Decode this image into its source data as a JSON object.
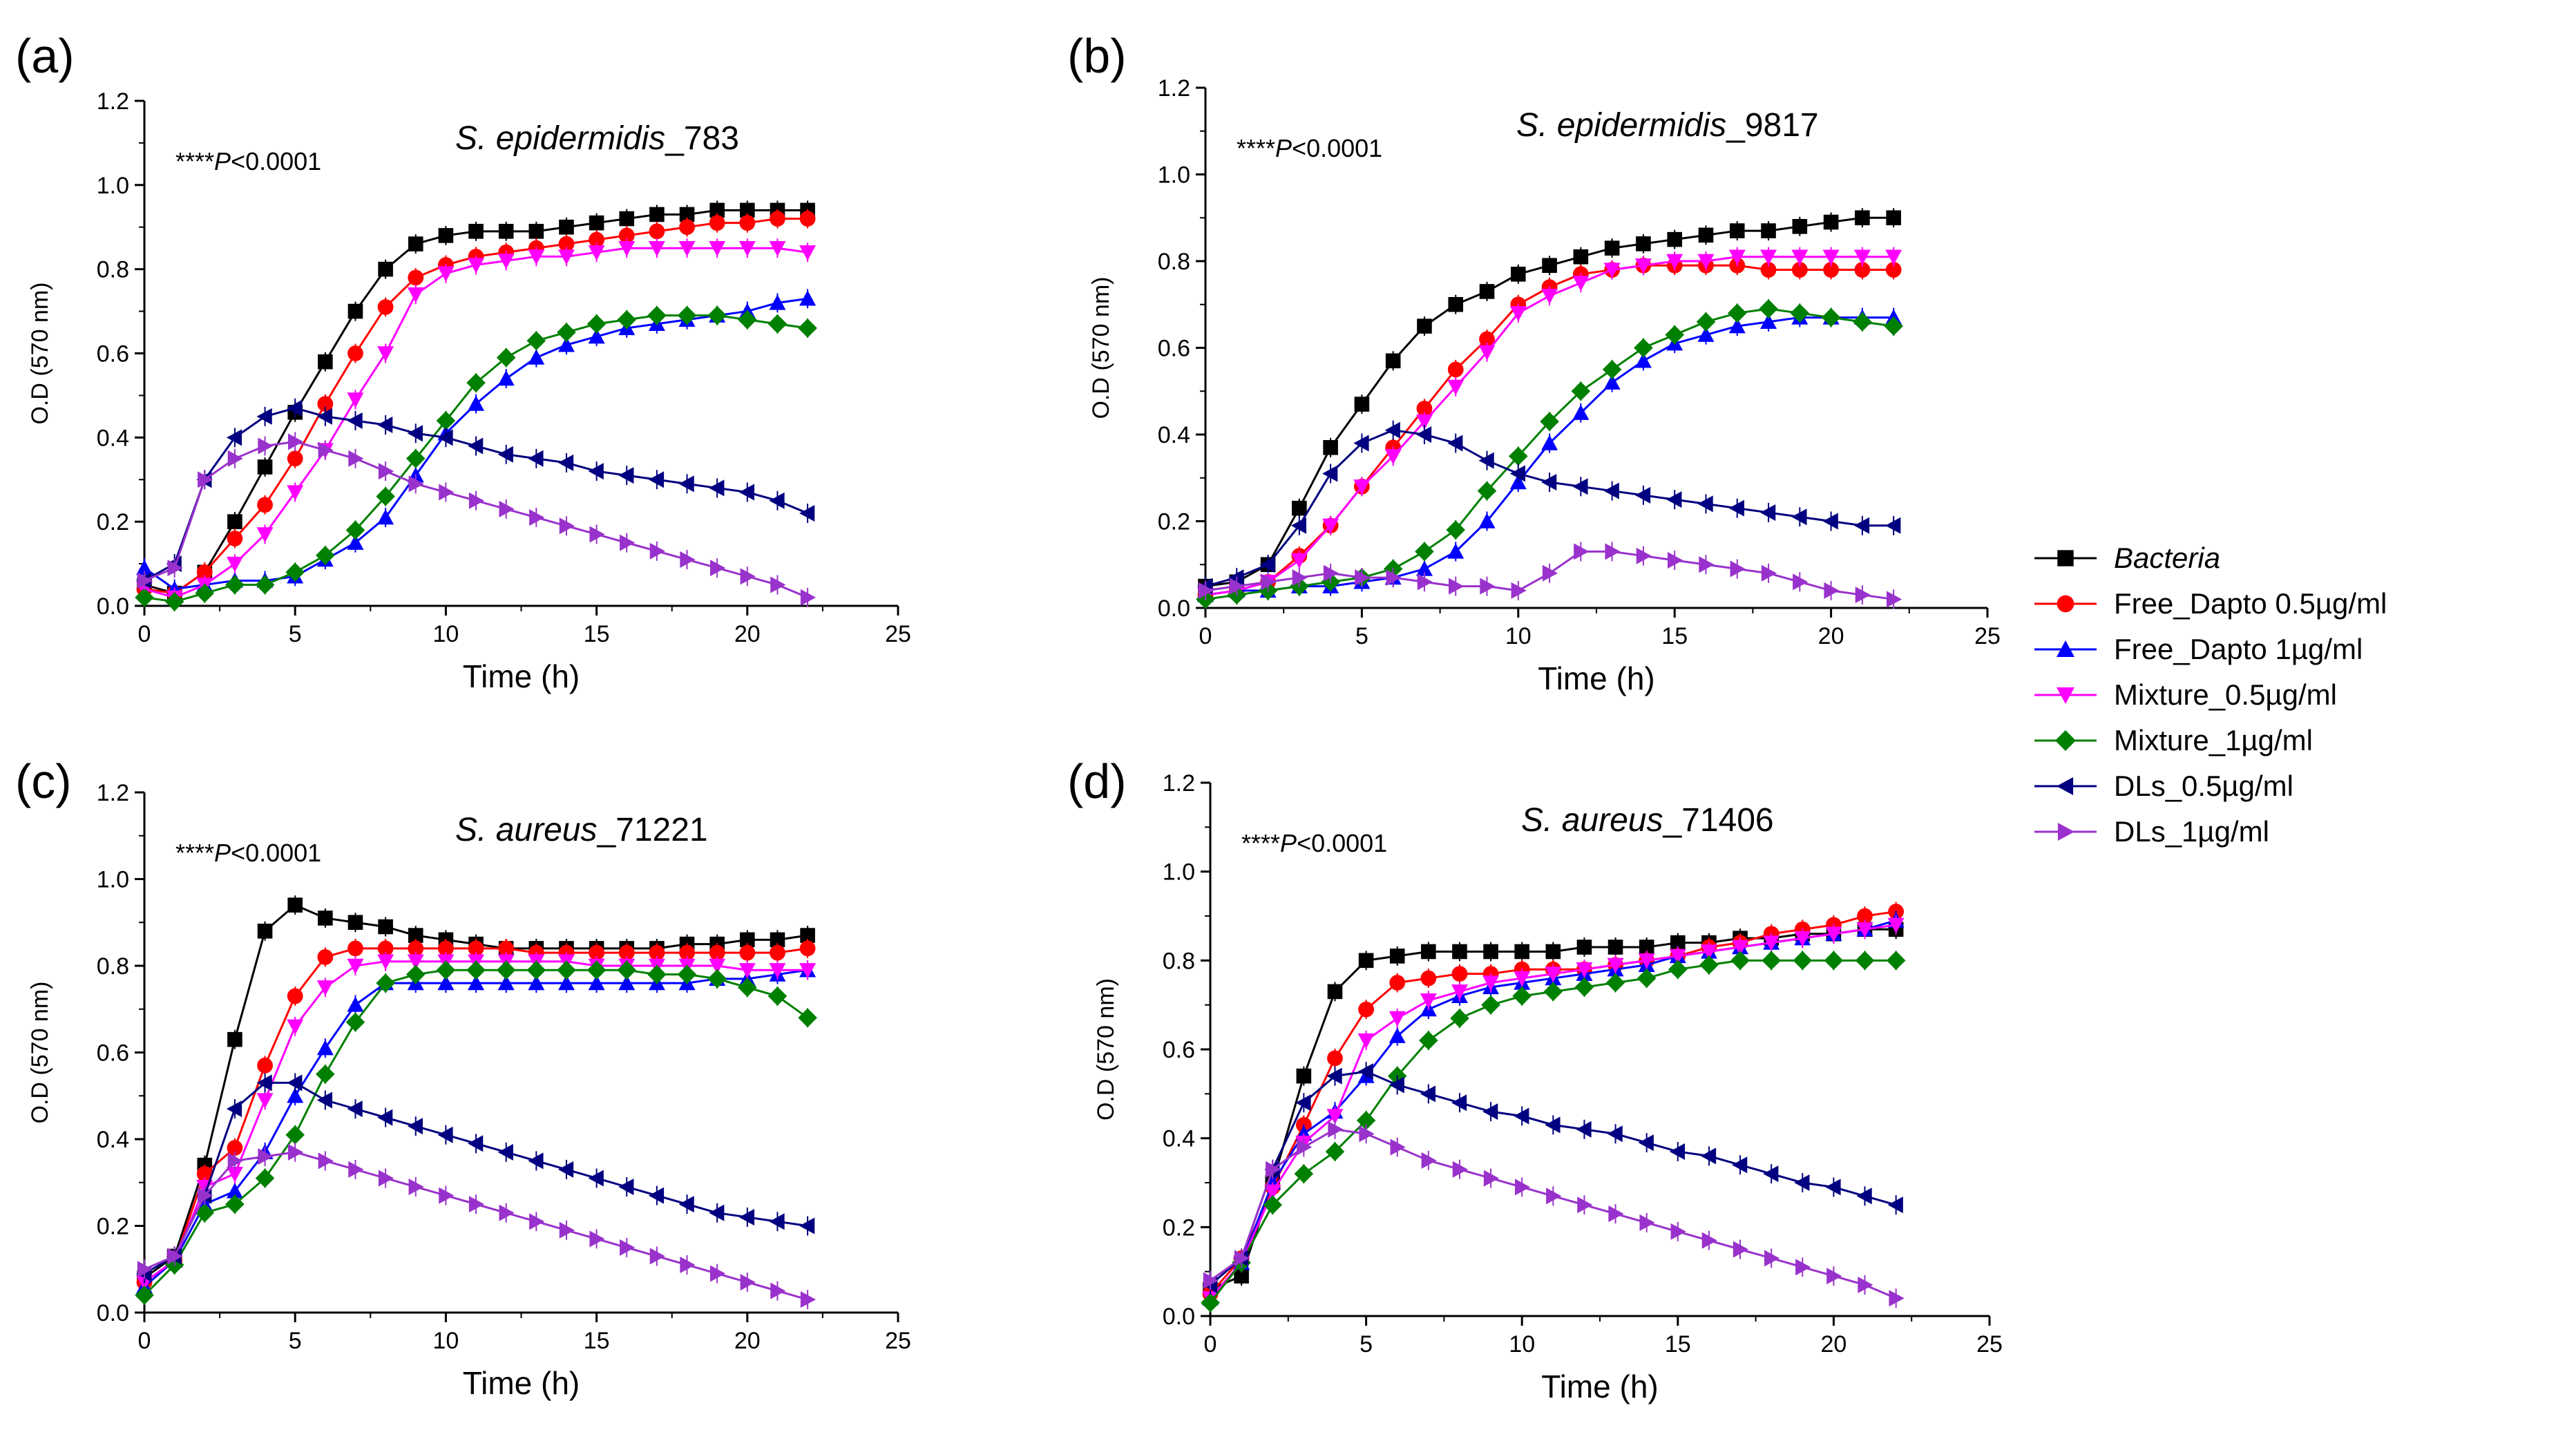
{
  "series_styles": [
    {
      "key": "bacteria",
      "label": "Bacteria",
      "italic": true,
      "color": "#000000",
      "marker": "square"
    },
    {
      "key": "free05",
      "label": "Free_Dapto 0.5µg/ml",
      "italic": false,
      "color": "#ff0000",
      "marker": "circle"
    },
    {
      "key": "free1",
      "label": "Free_Dapto 1µg/ml",
      "italic": false,
      "color": "#0000ff",
      "marker": "triangle-up"
    },
    {
      "key": "mix05",
      "label": "Mixture_0.5µg/ml",
      "italic": false,
      "color": "#ff00ff",
      "marker": "triangle-down"
    },
    {
      "key": "mix1",
      "label": "Mixture_1µg/ml",
      "italic": false,
      "color": "#008000",
      "marker": "diamond"
    },
    {
      "key": "dls05",
      "label": "DLs_0.5µg/ml",
      "italic": false,
      "color": "#000080",
      "marker": "triangle-left"
    },
    {
      "key": "dls1",
      "label": "DLs_1µg/ml",
      "italic": false,
      "color": "#9932cc",
      "marker": "triangle-right"
    }
  ],
  "chart_data": [
    {
      "type": "line",
      "panel_label": "(a)",
      "title_italic": "S. epidermidis",
      "title_rest": "_783",
      "stat_stars": "****",
      "stat_p": "P",
      "stat_rest": "<0.0001",
      "xlabel": "Time (h)",
      "ylabel": "O.D (570 nm)",
      "xlim": [
        0,
        25
      ],
      "ylim": [
        0,
        1.2
      ],
      "xticks": [
        0,
        5,
        10,
        15,
        20,
        25
      ],
      "yticks": [
        "0.0",
        "0.2",
        "0.4",
        "0.6",
        "0.8",
        "1.0",
        "1.2"
      ],
      "x": [
        0,
        1,
        2,
        3,
        4,
        5,
        6,
        7,
        8,
        9,
        10,
        11,
        12,
        13,
        14,
        15,
        16,
        17,
        18,
        19,
        20,
        21,
        22
      ],
      "series": [
        {
          "name": "Bacteria",
          "values": [
            0.05,
            0.03,
            0.08,
            0.2,
            0.33,
            0.46,
            0.58,
            0.7,
            0.8,
            0.86,
            0.88,
            0.89,
            0.89,
            0.89,
            0.9,
            0.91,
            0.92,
            0.93,
            0.93,
            0.94,
            0.94,
            0.94,
            0.94
          ]
        },
        {
          "name": "Free_Dapto 0.5µg/ml",
          "values": [
            0.04,
            0.03,
            0.08,
            0.16,
            0.24,
            0.35,
            0.48,
            0.6,
            0.71,
            0.78,
            0.81,
            0.83,
            0.84,
            0.85,
            0.86,
            0.87,
            0.88,
            0.89,
            0.9,
            0.91,
            0.91,
            0.92,
            0.92
          ]
        },
        {
          "name": "Free_Dapto 1µg/ml",
          "values": [
            0.09,
            0.04,
            0.05,
            0.06,
            0.06,
            0.07,
            0.11,
            0.15,
            0.21,
            0.31,
            0.41,
            0.48,
            0.54,
            0.59,
            0.62,
            0.64,
            0.66,
            0.67,
            0.68,
            0.69,
            0.7,
            0.72,
            0.73
          ]
        },
        {
          "name": "Mixture_0.5µg/ml",
          "values": [
            0.04,
            0.02,
            0.05,
            0.1,
            0.17,
            0.27,
            0.37,
            0.49,
            0.6,
            0.74,
            0.79,
            0.81,
            0.82,
            0.83,
            0.83,
            0.84,
            0.85,
            0.85,
            0.85,
            0.85,
            0.85,
            0.85,
            0.84
          ]
        },
        {
          "name": "Mixture_1µg/ml",
          "values": [
            0.02,
            0.01,
            0.03,
            0.05,
            0.05,
            0.08,
            0.12,
            0.18,
            0.26,
            0.35,
            0.44,
            0.53,
            0.59,
            0.63,
            0.65,
            0.67,
            0.68,
            0.69,
            0.69,
            0.69,
            0.68,
            0.67,
            0.66
          ]
        },
        {
          "name": "DLs_0.5µg/ml",
          "values": [
            0.06,
            0.1,
            0.3,
            0.4,
            0.45,
            0.47,
            0.45,
            0.44,
            0.43,
            0.41,
            0.4,
            0.38,
            0.36,
            0.35,
            0.34,
            0.32,
            0.31,
            0.3,
            0.29,
            0.28,
            0.27,
            0.25,
            0.22
          ]
        },
        {
          "name": "DLs_1µg/ml",
          "values": [
            0.06,
            0.09,
            0.3,
            0.35,
            0.38,
            0.39,
            0.37,
            0.35,
            0.32,
            0.29,
            0.27,
            0.25,
            0.23,
            0.21,
            0.19,
            0.17,
            0.15,
            0.13,
            0.11,
            0.09,
            0.07,
            0.05,
            0.02
          ]
        }
      ]
    },
    {
      "type": "line",
      "panel_label": "(b)",
      "title_italic": "S. epidermidis",
      "title_rest": "_9817",
      "stat_stars": "****",
      "stat_p": "P",
      "stat_rest": "<0.0001",
      "xlabel": "Time (h)",
      "ylabel": "O.D (570 nm)",
      "xlim": [
        0,
        25
      ],
      "ylim": [
        0,
        1.2
      ],
      "xticks": [
        0,
        5,
        10,
        15,
        20,
        25
      ],
      "yticks": [
        "0.0",
        "0.2",
        "0.4",
        "0.6",
        "0.8",
        "1.0",
        "1.2"
      ],
      "x": [
        0,
        1,
        2,
        3,
        4,
        5,
        6,
        7,
        8,
        9,
        10,
        11,
        12,
        13,
        14,
        15,
        16,
        17,
        18,
        19,
        20,
        21,
        22
      ],
      "series": [
        {
          "name": "Bacteria",
          "values": [
            0.05,
            0.06,
            0.1,
            0.23,
            0.37,
            0.47,
            0.57,
            0.65,
            0.7,
            0.73,
            0.77,
            0.79,
            0.81,
            0.83,
            0.84,
            0.85,
            0.86,
            0.87,
            0.87,
            0.88,
            0.89,
            0.9,
            0.9
          ]
        },
        {
          "name": "Free_Dapto 0.5µg/ml",
          "values": [
            0.03,
            0.04,
            0.06,
            0.12,
            0.19,
            0.28,
            0.37,
            0.46,
            0.55,
            0.62,
            0.7,
            0.74,
            0.77,
            0.78,
            0.79,
            0.79,
            0.79,
            0.79,
            0.78,
            0.78,
            0.78,
            0.78,
            0.78
          ]
        },
        {
          "name": "Free_Dapto 1µg/ml",
          "values": [
            0.03,
            0.04,
            0.04,
            0.05,
            0.05,
            0.06,
            0.07,
            0.09,
            0.13,
            0.2,
            0.29,
            0.38,
            0.45,
            0.52,
            0.57,
            0.61,
            0.63,
            0.65,
            0.66,
            0.67,
            0.67,
            0.67,
            0.67
          ]
        },
        {
          "name": "Mixture_0.5µg/ml",
          "values": [
            0.03,
            0.04,
            0.06,
            0.11,
            0.19,
            0.28,
            0.35,
            0.43,
            0.51,
            0.59,
            0.68,
            0.72,
            0.75,
            0.78,
            0.79,
            0.8,
            0.8,
            0.81,
            0.81,
            0.81,
            0.81,
            0.81,
            0.81
          ]
        },
        {
          "name": "Mixture_1µg/ml",
          "values": [
            0.02,
            0.03,
            0.04,
            0.05,
            0.06,
            0.07,
            0.09,
            0.13,
            0.18,
            0.27,
            0.35,
            0.43,
            0.5,
            0.55,
            0.6,
            0.63,
            0.66,
            0.68,
            0.69,
            0.68,
            0.67,
            0.66,
            0.65
          ]
        },
        {
          "name": "DLs_0.5µg/ml",
          "values": [
            0.05,
            0.07,
            0.1,
            0.19,
            0.31,
            0.38,
            0.41,
            0.4,
            0.38,
            0.34,
            0.31,
            0.29,
            0.28,
            0.27,
            0.26,
            0.25,
            0.24,
            0.23,
            0.22,
            0.21,
            0.2,
            0.19,
            0.19
          ]
        },
        {
          "name": "DLs_1µg/ml",
          "values": [
            0.04,
            0.05,
            0.06,
            0.07,
            0.08,
            0.07,
            0.07,
            0.06,
            0.05,
            0.05,
            0.04,
            0.08,
            0.13,
            0.13,
            0.12,
            0.11,
            0.1,
            0.09,
            0.08,
            0.06,
            0.04,
            0.03,
            0.02
          ]
        }
      ]
    },
    {
      "type": "line",
      "panel_label": "(c)",
      "title_italic": "S. aureus",
      "title_rest": "_71221",
      "stat_stars": "****",
      "stat_p": "P",
      "stat_rest": "<0.0001",
      "xlabel": "Time (h)",
      "ylabel": "O.D (570 nm)",
      "xlim": [
        0,
        25
      ],
      "ylim": [
        0,
        1.2
      ],
      "xticks": [
        0,
        5,
        10,
        15,
        20,
        25
      ],
      "yticks": [
        "0.0",
        "0.2",
        "0.4",
        "0.6",
        "0.8",
        "1.0",
        "1.2"
      ],
      "x": [
        0,
        1,
        2,
        3,
        4,
        5,
        6,
        7,
        8,
        9,
        10,
        11,
        12,
        13,
        14,
        15,
        16,
        17,
        18,
        19,
        20,
        21,
        22
      ],
      "series": [
        {
          "name": "Bacteria",
          "values": [
            0.08,
            0.13,
            0.34,
            0.63,
            0.88,
            0.94,
            0.91,
            0.9,
            0.89,
            0.87,
            0.86,
            0.85,
            0.84,
            0.84,
            0.84,
            0.84,
            0.84,
            0.84,
            0.85,
            0.85,
            0.86,
            0.86,
            0.87
          ]
        },
        {
          "name": "Free_Dapto 0.5µg/ml",
          "values": [
            0.07,
            0.12,
            0.32,
            0.38,
            0.57,
            0.73,
            0.82,
            0.84,
            0.84,
            0.84,
            0.84,
            0.84,
            0.84,
            0.83,
            0.83,
            0.83,
            0.83,
            0.83,
            0.83,
            0.83,
            0.83,
            0.83,
            0.84
          ]
        },
        {
          "name": "Free_Dapto 1µg/ml",
          "values": [
            0.06,
            0.12,
            0.25,
            0.28,
            0.37,
            0.5,
            0.61,
            0.71,
            0.76,
            0.76,
            0.76,
            0.76,
            0.76,
            0.76,
            0.76,
            0.76,
            0.76,
            0.76,
            0.76,
            0.77,
            0.77,
            0.78,
            0.79
          ]
        },
        {
          "name": "Mixture_0.5µg/ml",
          "values": [
            0.07,
            0.12,
            0.29,
            0.32,
            0.49,
            0.66,
            0.75,
            0.8,
            0.81,
            0.81,
            0.81,
            0.81,
            0.81,
            0.81,
            0.81,
            0.8,
            0.8,
            0.8,
            0.8,
            0.8,
            0.79,
            0.79,
            0.79
          ]
        },
        {
          "name": "Mixture_1µg/ml",
          "values": [
            0.04,
            0.11,
            0.23,
            0.25,
            0.31,
            0.41,
            0.55,
            0.67,
            0.76,
            0.78,
            0.79,
            0.79,
            0.79,
            0.79,
            0.79,
            0.79,
            0.79,
            0.78,
            0.78,
            0.77,
            0.75,
            0.73,
            0.68
          ]
        },
        {
          "name": "DLs_0.5µg/ml",
          "values": [
            0.09,
            0.13,
            0.27,
            0.47,
            0.53,
            0.53,
            0.49,
            0.47,
            0.45,
            0.43,
            0.41,
            0.39,
            0.37,
            0.35,
            0.33,
            0.31,
            0.29,
            0.27,
            0.25,
            0.23,
            0.22,
            0.21,
            0.2
          ]
        },
        {
          "name": "DLs_1µg/ml",
          "values": [
            0.1,
            0.13,
            0.27,
            0.35,
            0.36,
            0.37,
            0.35,
            0.33,
            0.31,
            0.29,
            0.27,
            0.25,
            0.23,
            0.21,
            0.19,
            0.17,
            0.15,
            0.13,
            0.11,
            0.09,
            0.07,
            0.05,
            0.03
          ]
        }
      ]
    },
    {
      "type": "line",
      "panel_label": "(d)",
      "title_italic": "S. aureus",
      "title_rest": "_71406",
      "stat_stars": "****",
      "stat_p": "P",
      "stat_rest": "<0.0001",
      "xlabel": "Time (h)",
      "ylabel": "O.D (570 nm)",
      "xlim": [
        0,
        25
      ],
      "ylim": [
        0,
        1.2
      ],
      "xticks": [
        0,
        5,
        10,
        15,
        20,
        25
      ],
      "yticks": [
        "0.0",
        "0.2",
        "0.4",
        "0.6",
        "0.8",
        "1.0",
        "1.2"
      ],
      "x": [
        0,
        1,
        2,
        3,
        4,
        5,
        6,
        7,
        8,
        9,
        10,
        11,
        12,
        13,
        14,
        15,
        16,
        17,
        18,
        19,
        20,
        21,
        22
      ],
      "series": [
        {
          "name": "Bacteria",
          "values": [
            0.06,
            0.09,
            0.3,
            0.54,
            0.73,
            0.8,
            0.81,
            0.82,
            0.82,
            0.82,
            0.82,
            0.82,
            0.83,
            0.83,
            0.83,
            0.84,
            0.84,
            0.85,
            0.85,
            0.86,
            0.86,
            0.87,
            0.87
          ]
        },
        {
          "name": "Free_Dapto 0.5µg/ml",
          "values": [
            0.05,
            0.13,
            0.29,
            0.43,
            0.58,
            0.69,
            0.75,
            0.76,
            0.77,
            0.77,
            0.78,
            0.78,
            0.78,
            0.79,
            0.8,
            0.81,
            0.83,
            0.84,
            0.86,
            0.87,
            0.88,
            0.9,
            0.91
          ]
        },
        {
          "name": "Free_Dapto 1µg/ml",
          "values": [
            0.04,
            0.12,
            0.3,
            0.41,
            0.46,
            0.54,
            0.63,
            0.69,
            0.72,
            0.74,
            0.75,
            0.76,
            0.77,
            0.78,
            0.79,
            0.81,
            0.82,
            0.83,
            0.84,
            0.85,
            0.86,
            0.87,
            0.89
          ]
        },
        {
          "name": "Mixture_0.5µg/ml",
          "values": [
            0.04,
            0.12,
            0.28,
            0.39,
            0.45,
            0.62,
            0.67,
            0.71,
            0.73,
            0.75,
            0.76,
            0.77,
            0.78,
            0.79,
            0.8,
            0.81,
            0.82,
            0.83,
            0.84,
            0.85,
            0.86,
            0.87,
            0.88
          ]
        },
        {
          "name": "Mixture_1µg/ml",
          "values": [
            0.03,
            0.12,
            0.25,
            0.32,
            0.37,
            0.44,
            0.54,
            0.62,
            0.67,
            0.7,
            0.72,
            0.73,
            0.74,
            0.75,
            0.76,
            0.78,
            0.79,
            0.8,
            0.8,
            0.8,
            0.8,
            0.8,
            0.8
          ]
        },
        {
          "name": "DLs_0.5µg/ml",
          "values": [
            0.07,
            0.13,
            0.33,
            0.48,
            0.54,
            0.55,
            0.52,
            0.5,
            0.48,
            0.46,
            0.45,
            0.43,
            0.42,
            0.41,
            0.39,
            0.37,
            0.36,
            0.34,
            0.32,
            0.3,
            0.29,
            0.27,
            0.25
          ]
        },
        {
          "name": "DLs_1µg/ml",
          "values": [
            0.08,
            0.13,
            0.33,
            0.38,
            0.42,
            0.41,
            0.38,
            0.35,
            0.33,
            0.31,
            0.29,
            0.27,
            0.25,
            0.23,
            0.21,
            0.19,
            0.17,
            0.15,
            0.13,
            0.11,
            0.09,
            0.07,
            0.04
          ]
        }
      ]
    }
  ]
}
